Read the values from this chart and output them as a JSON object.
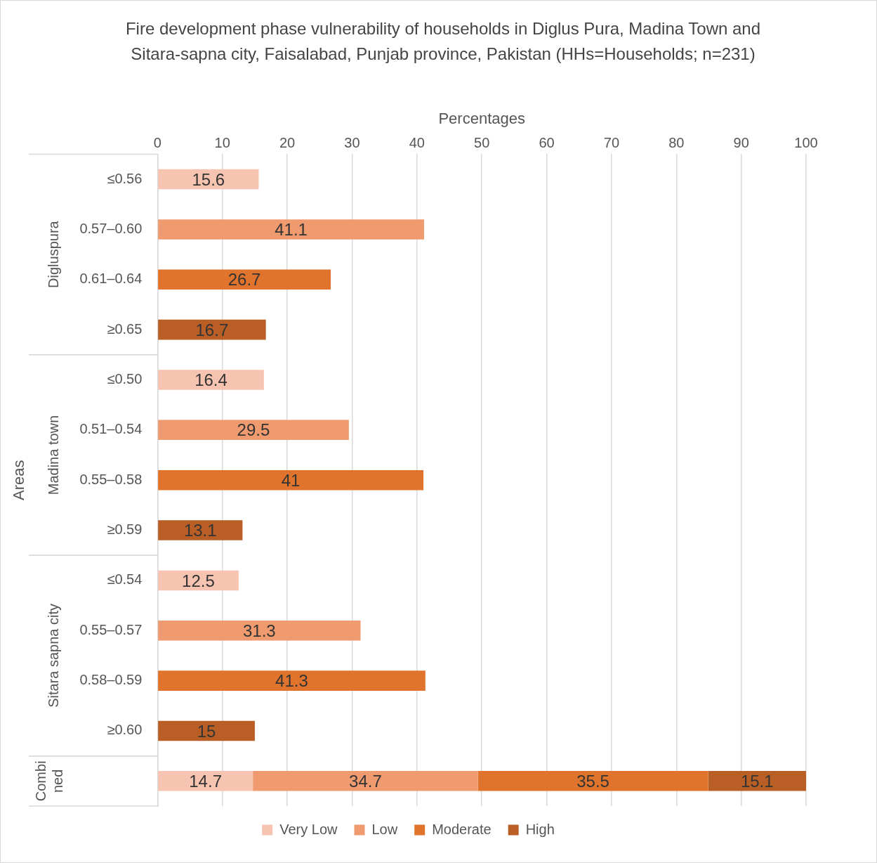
{
  "chart_data": {
    "type": "bar",
    "orientation": "horizontal",
    "stacked": true,
    "title": "Fire development phase vulnerability of households in Diglus Pura, Madina Town and Sitara-sapna city, Faisalabad, Punjab province, Pakistan (HHs=Households; n=231)",
    "xlabel": "Percentages",
    "ylabel": "Areas",
    "annotations": [
      "Digluspura",
      "Madina town",
      "Sitara sapna city",
      "Combined"
    ],
    "categories": [
      "≤0.56",
      "0.57–0.60",
      "0.61–0.64",
      "≥0.65",
      "≤0.50",
      "0.51–0.54",
      "0.55–0.58",
      "≥0.59",
      "≤0.54",
      "0.55–0.57",
      "0.58–0.59",
      "≥0.60",
      null
    ],
    "series": [
      {
        "name": "Very Low",
        "color": "#f6c4b0",
        "values": [
          15.6,
          null,
          null,
          null,
          16.4,
          null,
          null,
          null,
          12.5,
          null,
          null,
          null,
          14.7
        ]
      },
      {
        "name": "Low",
        "color": "#f09a70",
        "values": [
          null,
          41.1,
          null,
          null,
          null,
          29.5,
          null,
          null,
          null,
          31.3,
          null,
          null,
          34.7
        ]
      },
      {
        "name": "Moderate",
        "color": "#e0742c",
        "values": [
          null,
          null,
          26.7,
          null,
          null,
          null,
          41,
          null,
          null,
          null,
          41.3,
          null,
          35.5
        ]
      },
      {
        "name": "High",
        "color": "#b95f26",
        "values": [
          null,
          null,
          null,
          16.7,
          null,
          null,
          null,
          13.1,
          null,
          null,
          null,
          15,
          15.1
        ]
      }
    ],
    "xlim": [
      0,
      100
    ],
    "xticks": [
      0,
      10,
      20,
      30,
      40,
      50,
      60,
      70,
      80,
      90,
      100
    ],
    "grid": "x",
    "legend": "bottom",
    "data_labels": true
  }
}
